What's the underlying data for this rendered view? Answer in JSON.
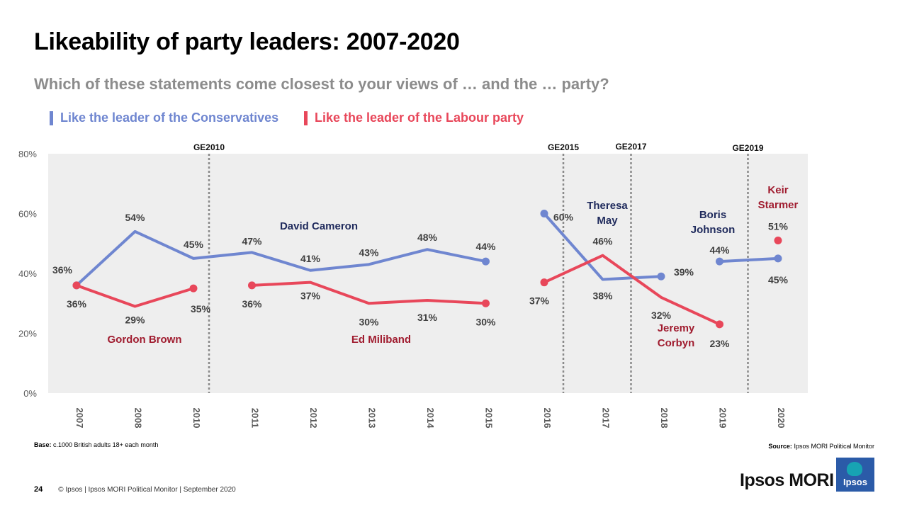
{
  "header": {
    "title": "Likeability of party leaders: 2007-2020",
    "subtitle": "Which of these statements come closest to your views of … and the … party?"
  },
  "colors": {
    "conservative": "#6f86d0",
    "labour": "#e8475a",
    "panel": "#eeeeee",
    "axis_text": "#595959",
    "leader_con": "#1f2a5c",
    "leader_lab": "#a01c2f"
  },
  "chart_data": {
    "type": "line",
    "title": "Likeability of party leaders: 2007-2020",
    "categories": [
      "2007",
      "2008",
      "2010",
      "2011",
      "2012",
      "2013",
      "2014",
      "2015",
      "2016",
      "2017",
      "2018",
      "2019",
      "2020"
    ],
    "ylim": [
      0,
      80
    ],
    "yticks": [
      0,
      20,
      40,
      60,
      80
    ],
    "ytick_labels": [
      "0%",
      "20%",
      "40%",
      "60%",
      "80%"
    ],
    "grid": false,
    "legend_position": "top-left",
    "series": [
      {
        "name": "Like the leader of the Conservatives",
        "color": "#6f86d0",
        "segments": [
          {
            "points": [
              [
                0,
                36
              ],
              [
                1,
                54
              ],
              [
                2,
                45
              ],
              [
                3,
                47
              ],
              [
                4,
                41
              ],
              [
                5,
                43
              ],
              [
                6,
                48
              ],
              [
                7,
                44
              ]
            ],
            "labels": [
              "36%",
              "54%",
              "45%",
              "47%",
              "41%",
              "43%",
              "48%",
              "44%"
            ]
          },
          {
            "points": [
              [
                8,
                60
              ],
              [
                9,
                38
              ],
              [
                10,
                39
              ]
            ],
            "labels": [
              "60%",
              "38%",
              "39%"
            ]
          },
          {
            "points": [
              [
                11,
                44
              ],
              [
                12,
                45
              ]
            ],
            "labels": [
              "44%",
              "45%"
            ]
          }
        ]
      },
      {
        "name": "Like the leader of the Labour party",
        "color": "#e8475a",
        "segments": [
          {
            "points": [
              [
                0,
                36
              ],
              [
                1,
                29
              ],
              [
                2,
                35
              ]
            ],
            "labels": [
              "36%",
              "29%",
              "35%"
            ]
          },
          {
            "points": [
              [
                3,
                36
              ],
              [
                4,
                37
              ],
              [
                5,
                30
              ],
              [
                6,
                31
              ],
              [
                7,
                30
              ]
            ],
            "labels": [
              "36%",
              "37%",
              "30%",
              "31%",
              "30%"
            ]
          },
          {
            "points": [
              [
                8,
                37
              ],
              [
                9,
                46
              ],
              [
                10,
                32
              ],
              [
                11,
                23
              ]
            ],
            "labels": [
              "37%",
              "46%",
              "32%",
              "23%"
            ]
          },
          {
            "points": [
              [
                12,
                51
              ]
            ],
            "labels": [
              "51%"
            ]
          }
        ]
      }
    ],
    "elections": [
      {
        "label": "GE2010",
        "after_index": 2
      },
      {
        "label": "GE2015",
        "after_index": 8
      },
      {
        "label": "GE2017",
        "after_index": 9
      },
      {
        "label": "GE2019",
        "after_index": 11
      }
    ],
    "leader_annotations": [
      {
        "text": "David Cameron",
        "party": "con"
      },
      {
        "text": "Theresa May",
        "party": "con"
      },
      {
        "text": "Boris Johnson",
        "party": "con"
      },
      {
        "text": "Gordon Brown",
        "party": "lab"
      },
      {
        "text": "Ed Miliband",
        "party": "lab"
      },
      {
        "text": "Jeremy Corbyn",
        "party": "lab"
      },
      {
        "text": "Keir Starmer",
        "party": "lab"
      }
    ]
  },
  "notes": {
    "base_label": "Base:",
    "base_text": "c.1000 British adults 18+ each month",
    "source_label": "Source:",
    "source_text": "Ipsos MORI Political Monitor"
  },
  "footer": {
    "page_number": "24",
    "copyright": "© Ipsos | Ipsos MORI Political Monitor | September 2020",
    "brand": "Ipsos MORI",
    "logo_text": "Ipsos"
  }
}
